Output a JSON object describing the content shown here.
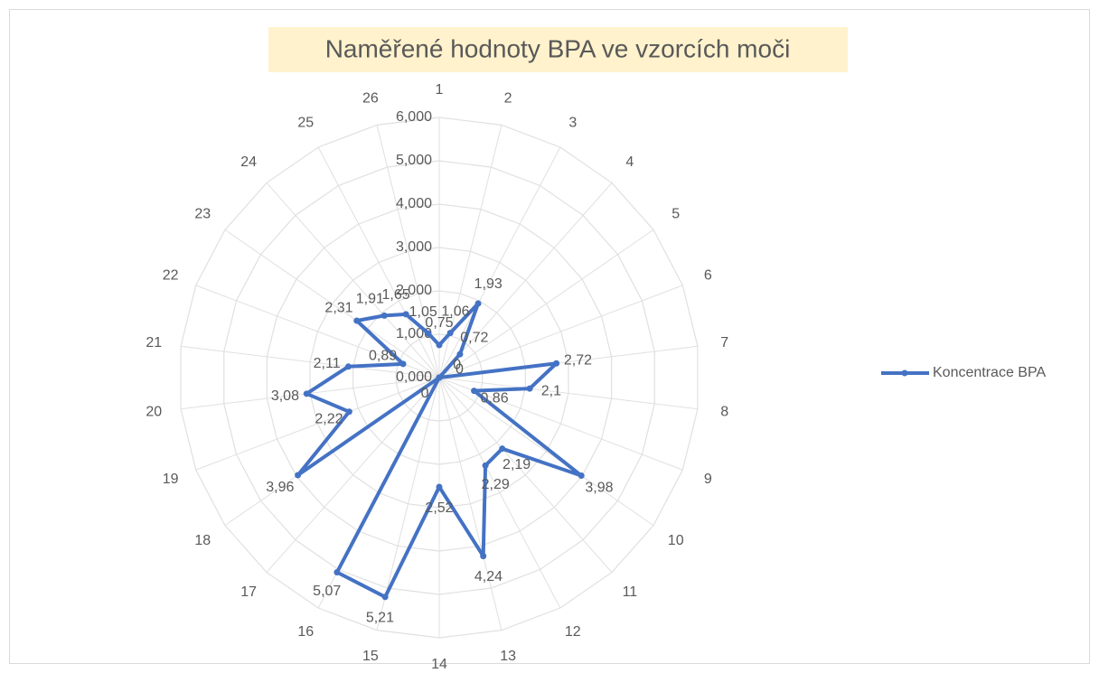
{
  "chart_data": {
    "type": "radar",
    "title": "Naměřené hodnoty BPA ve vzorcích moči",
    "categories": [
      "1",
      "2",
      "3",
      "4",
      "5",
      "6",
      "7",
      "8",
      "9",
      "10",
      "11",
      "12",
      "13",
      "14",
      "15",
      "16",
      "17",
      "18",
      "19",
      "20",
      "21",
      "22",
      "23",
      "24",
      "25",
      "26"
    ],
    "series": [
      {
        "name": "Koncentrace BPA",
        "color": "#4472c4",
        "values": [
          0.75,
          1.06,
          1.93,
          0.72,
          0,
          0,
          2.72,
          2.1,
          0.86,
          3.98,
          2.19,
          2.29,
          4.24,
          2.52,
          5.21,
          5.07,
          0,
          3.96,
          2.22,
          3.08,
          2.11,
          0.89,
          2.31,
          1.91,
          1.65,
          1.05
        ],
        "value_labels": [
          "0,75",
          "1,06",
          "1,93",
          "0,72",
          "0",
          "0",
          "2,72",
          "2,1",
          "0,86",
          "3,98",
          "2,19",
          "2,29",
          "4,24",
          "2,52",
          "5,21",
          "5,07",
          "0",
          "3,96",
          "2,22",
          "3,08",
          "2,11",
          "0,89",
          "2,31",
          "1,91",
          "1,65",
          "1,05"
        ]
      }
    ],
    "ylim": [
      0,
      6
    ],
    "yticks": [
      {
        "value": 0,
        "label": "0,000"
      },
      {
        "value": 1,
        "label": "1,000"
      },
      {
        "value": 2,
        "label": "2,000"
      },
      {
        "value": 3,
        "label": "3,000"
      },
      {
        "value": 4,
        "label": "4,000"
      },
      {
        "value": 5,
        "label": "5,000"
      },
      {
        "value": 6,
        "label": "6,000"
      }
    ],
    "grid": true,
    "legend": "right"
  }
}
